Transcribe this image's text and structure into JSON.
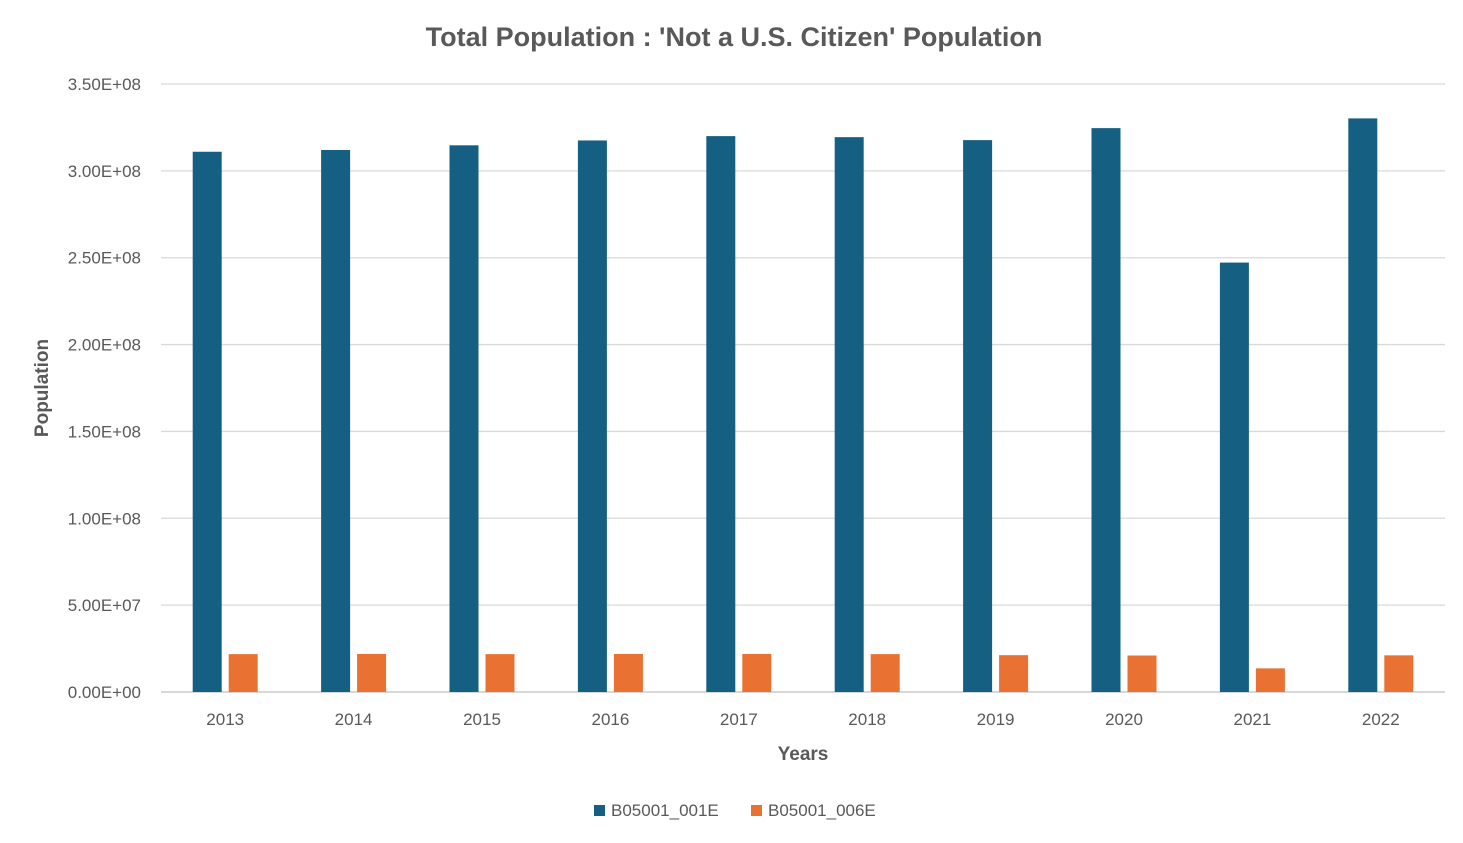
{
  "chart_data": {
    "type": "bar",
    "title": "Total Population : 'Not a U.S. Citizen' Population",
    "xlabel": "Years",
    "ylabel": "Population",
    "categories": [
      "2013",
      "2014",
      "2015",
      "2016",
      "2017",
      "2018",
      "2019",
      "2020",
      "2021",
      "2022"
    ],
    "series": [
      {
        "name": "B05001_001E",
        "color": "#156082",
        "values": [
          311000000,
          312000000,
          314700000,
          317500000,
          320000000,
          319400000,
          317700000,
          324600000,
          247200000,
          330200000
        ]
      },
      {
        "name": "B05001_006E",
        "color": "#E97132",
        "values": [
          21800000,
          21900000,
          21800000,
          21900000,
          21900000,
          21800000,
          21200000,
          21000000,
          13600000,
          21100000
        ]
      }
    ],
    "ylim": [
      0,
      350000000
    ],
    "yticks": [
      0,
      50000000,
      100000000,
      150000000,
      200000000,
      250000000,
      300000000,
      350000000
    ],
    "ytick_labels": [
      "0.00E+00",
      "5.00E+07",
      "1.00E+08",
      "1.50E+08",
      "2.00E+08",
      "2.50E+08",
      "3.00E+08",
      "3.50E+08"
    ],
    "grid": true,
    "legend_position": "bottom"
  }
}
